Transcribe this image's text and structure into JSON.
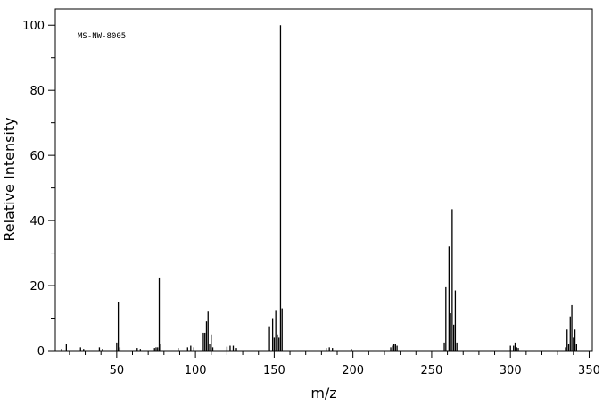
{
  "chart_data": {
    "type": "stick",
    "annotation": "MS-NW-8005",
    "xlabel": "m/z",
    "ylabel": "Relative Intensity",
    "color": "#000000",
    "x": [
      15,
      18,
      27,
      29,
      39,
      41,
      50,
      51,
      52,
      63,
      65,
      74,
      75,
      76,
      77,
      78,
      89,
      95,
      97,
      99,
      105,
      106,
      107,
      108,
      109,
      110,
      111,
      120,
      122,
      124,
      126,
      147,
      149,
      150,
      151,
      152,
      153,
      154,
      155,
      183,
      185,
      187,
      199,
      224,
      225,
      226,
      227,
      228,
      258,
      259,
      261,
      262,
      263,
      264,
      265,
      266,
      300,
      302,
      303,
      304,
      305,
      335,
      336,
      337,
      338,
      339,
      340,
      341,
      342
    ],
    "values": [
      0.5,
      2,
      1,
      0.5,
      1,
      0.5,
      2.5,
      15,
      1,
      0.8,
      0.5,
      0.8,
      1,
      1,
      22.5,
      2,
      0.8,
      1,
      1.5,
      1,
      5.5,
      5.5,
      9,
      12,
      2,
      5,
      1,
      1.2,
      1.5,
      1.5,
      0.8,
      7.5,
      10,
      4,
      12.5,
      5,
      4,
      100,
      13,
      0.8,
      1,
      0.8,
      0.5,
      1,
      1.5,
      2,
      2,
      1.5,
      2.5,
      19.5,
      32,
      11.5,
      43.5,
      8,
      18.5,
      2.5,
      1.5,
      1.5,
      2.5,
      1,
      0.8,
      1,
      6.5,
      2,
      10.5,
      14,
      4,
      6.5,
      2
    ],
    "xlim": [
      11,
      352
    ],
    "ylim": [
      0,
      105
    ],
    "xticks": [
      50,
      100,
      150,
      200,
      250,
      300,
      350
    ],
    "xminorticks": [
      20,
      30,
      40,
      60,
      70,
      80,
      90,
      110,
      120,
      130,
      140,
      160,
      170,
      180,
      190,
      210,
      220,
      230,
      240,
      260,
      270,
      280,
      290,
      310,
      320,
      330,
      340
    ],
    "yticks": [
      0,
      20,
      40,
      60,
      80,
      100
    ],
    "yminorticks": [
      10,
      30,
      50,
      70,
      90
    ]
  }
}
